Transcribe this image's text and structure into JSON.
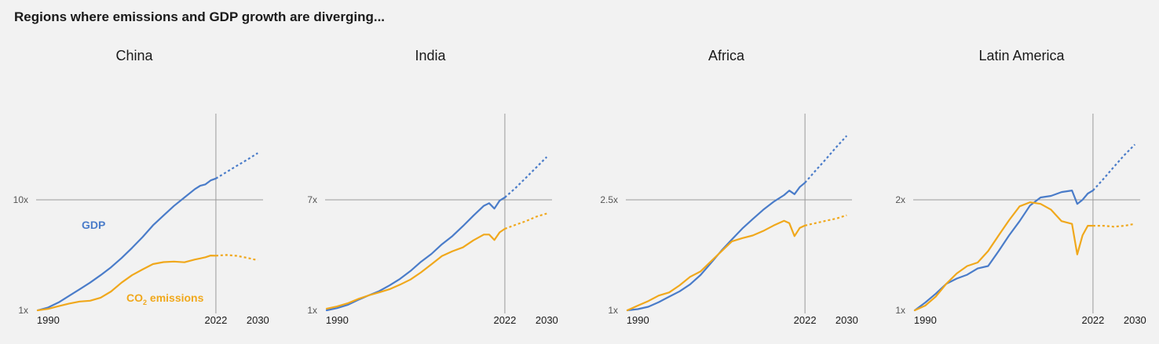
{
  "page": {
    "title": "Regions where emissions and GDP growth are diverging..."
  },
  "colors": {
    "gdp": "#4a7cc9",
    "co2": "#f0a81c",
    "axis": "#9a9a9a",
    "text": "#1a1a1a",
    "tick_text": "#555555",
    "background": "#f2f2f2"
  },
  "chart_data": [
    {
      "type": "line",
      "title": "China",
      "y_scale": "log",
      "ytick_label": "10x",
      "ytick_value": 10,
      "ylim": [
        1,
        30
      ],
      "xlim": [
        1988,
        2031
      ],
      "xtick_labels": [
        "1990",
        "2022",
        "2030"
      ],
      "vline": 2022,
      "annotations": [
        "GDP",
        "CO2 emissions"
      ],
      "series": [
        {
          "name": "GDP",
          "x": [
            1988,
            1990,
            1992,
            1994,
            1996,
            1998,
            2000,
            2002,
            2004,
            2006,
            2008,
            2010,
            2012,
            2014,
            2016,
            2018,
            2019,
            2020,
            2021,
            2022
          ],
          "y": [
            1.0,
            1.06,
            1.18,
            1.35,
            1.55,
            1.78,
            2.08,
            2.45,
            2.97,
            3.67,
            4.6,
            5.87,
            7.2,
            8.8,
            10.5,
            12.5,
            13.4,
            13.8,
            15.0,
            15.6
          ]
        },
        {
          "name": "GDP (projection)",
          "x": [
            2022,
            2024,
            2026,
            2028,
            2030
          ],
          "y": [
            15.6,
            17.8,
            20.3,
            23.1,
            26.5
          ]
        },
        {
          "name": "CO2 emissions",
          "x": [
            1988,
            1990,
            1992,
            1994,
            1996,
            1998,
            2000,
            2002,
            2004,
            2006,
            2008,
            2010,
            2012,
            2014,
            2016,
            2018,
            2019,
            2020,
            2021,
            2022
          ],
          "y": [
            1.0,
            1.03,
            1.09,
            1.15,
            1.2,
            1.22,
            1.3,
            1.48,
            1.78,
            2.08,
            2.34,
            2.62,
            2.73,
            2.76,
            2.72,
            2.88,
            2.95,
            3.02,
            3.13,
            3.12
          ]
        },
        {
          "name": "CO2 emissions (projection)",
          "x": [
            2022,
            2024,
            2026,
            2028,
            2030
          ],
          "y": [
            3.12,
            3.17,
            3.11,
            2.98,
            2.84
          ]
        }
      ]
    },
    {
      "type": "line",
      "title": "India",
      "y_scale": "log",
      "ytick_label": "7x",
      "ytick_value": 7,
      "ylim": [
        1,
        19
      ],
      "xlim": [
        1988,
        2031
      ],
      "xtick_labels": [
        "1990",
        "2022",
        "2030"
      ],
      "vline": 2022,
      "series": [
        {
          "name": "GDP",
          "x": [
            1988,
            1990,
            1992,
            1994,
            1996,
            1998,
            2000,
            2002,
            2004,
            2006,
            2008,
            2010,
            2012,
            2014,
            2016,
            2018,
            2019,
            2020,
            2021,
            2022
          ],
          "y": [
            1.0,
            1.04,
            1.1,
            1.2,
            1.3,
            1.4,
            1.55,
            1.74,
            2.0,
            2.35,
            2.7,
            3.2,
            3.7,
            4.4,
            5.3,
            6.3,
            6.6,
            6.0,
            6.9,
            7.3
          ]
        },
        {
          "name": "GDP (projection)",
          "x": [
            2022,
            2024,
            2026,
            2028,
            2030
          ],
          "y": [
            7.3,
            8.6,
            10.3,
            12.4,
            14.9
          ]
        },
        {
          "name": "CO2 emissions",
          "x": [
            1988,
            1990,
            1992,
            1994,
            1996,
            1998,
            2000,
            2002,
            2004,
            2006,
            2008,
            2010,
            2012,
            2014,
            2016,
            2018,
            2019,
            2020,
            2021,
            2022
          ],
          "y": [
            1.03,
            1.07,
            1.13,
            1.22,
            1.3,
            1.37,
            1.45,
            1.57,
            1.72,
            1.95,
            2.25,
            2.6,
            2.83,
            3.03,
            3.43,
            3.8,
            3.8,
            3.45,
            3.95,
            4.2
          ]
        },
        {
          "name": "CO2 emissions (projection)",
          "x": [
            2022,
            2024,
            2026,
            2028,
            2030
          ],
          "y": [
            4.2,
            4.5,
            4.8,
            5.2,
            5.5
          ]
        }
      ]
    },
    {
      "type": "line",
      "title": "Africa",
      "y_scale": "log",
      "ytick_label": "2.5x",
      "ytick_value": 2.5,
      "ylim": [
        1,
        4.2
      ],
      "xlim": [
        1988,
        2031
      ],
      "xtick_labels": [
        "1990",
        "2022",
        "2030"
      ],
      "vline": 2022,
      "series": [
        {
          "name": "GDP",
          "x": [
            1988,
            1990,
            1992,
            1994,
            1996,
            1998,
            2000,
            2002,
            2004,
            2006,
            2008,
            2010,
            2012,
            2014,
            2016,
            2018,
            2019,
            2020,
            2021,
            2022
          ],
          "y": [
            1.0,
            1.01,
            1.03,
            1.07,
            1.12,
            1.17,
            1.24,
            1.34,
            1.48,
            1.64,
            1.8,
            1.97,
            2.13,
            2.3,
            2.46,
            2.6,
            2.7,
            2.62,
            2.78,
            2.88
          ]
        },
        {
          "name": "GDP (projection)",
          "x": [
            2022,
            2024,
            2026,
            2028,
            2030
          ],
          "y": [
            2.88,
            3.18,
            3.5,
            3.87,
            4.25
          ]
        },
        {
          "name": "CO2 emissions",
          "x": [
            1988,
            1990,
            1992,
            1994,
            1996,
            1998,
            2000,
            2002,
            2004,
            2006,
            2008,
            2010,
            2012,
            2014,
            2016,
            2018,
            2019,
            2020,
            2021,
            2022
          ],
          "y": [
            1.0,
            1.04,
            1.08,
            1.13,
            1.16,
            1.23,
            1.32,
            1.38,
            1.5,
            1.63,
            1.77,
            1.82,
            1.86,
            1.93,
            2.02,
            2.1,
            2.06,
            1.85,
            1.98,
            2.02
          ]
        },
        {
          "name": "CO2 emissions (projection)",
          "x": [
            2022,
            2024,
            2026,
            2028,
            2030
          ],
          "y": [
            2.02,
            2.06,
            2.1,
            2.14,
            2.2
          ]
        }
      ]
    },
    {
      "type": "line",
      "title": "Latin America",
      "y_scale": "log",
      "ytick_label": "2x",
      "ytick_value": 2,
      "ylim": [
        1,
        3.0
      ],
      "xlim": [
        1988,
        2031
      ],
      "xtick_labels": [
        "1990",
        "2022",
        "2030"
      ],
      "vline": 2022,
      "series": [
        {
          "name": "GDP",
          "x": [
            1988,
            1990,
            1992,
            1994,
            1996,
            1998,
            2000,
            2002,
            2004,
            2006,
            2008,
            2010,
            2012,
            2014,
            2016,
            2018,
            2019,
            2020,
            2021,
            2022
          ],
          "y": [
            1.0,
            1.05,
            1.11,
            1.18,
            1.22,
            1.25,
            1.3,
            1.32,
            1.45,
            1.6,
            1.75,
            1.93,
            2.03,
            2.05,
            2.1,
            2.12,
            1.95,
            2.0,
            2.08,
            2.12
          ]
        },
        {
          "name": "GDP (projection)",
          "x": [
            2022,
            2024,
            2026,
            2028,
            2030
          ],
          "y": [
            2.12,
            2.28,
            2.46,
            2.65,
            2.83
          ]
        },
        {
          "name": "CO2 emissions",
          "x": [
            1988,
            1990,
            1992,
            1994,
            1996,
            1998,
            2000,
            2002,
            2004,
            2006,
            2008,
            2010,
            2012,
            2014,
            2016,
            2018,
            2019,
            2020,
            2021,
            2022
          ],
          "y": [
            1.0,
            1.03,
            1.09,
            1.18,
            1.26,
            1.32,
            1.35,
            1.45,
            1.6,
            1.76,
            1.92,
            1.97,
            1.95,
            1.88,
            1.75,
            1.72,
            1.42,
            1.6,
            1.7,
            1.7
          ]
        },
        {
          "name": "CO2 emissions (projection)",
          "x": [
            2022,
            2024,
            2026,
            2028,
            2030
          ],
          "y": [
            1.7,
            1.7,
            1.69,
            1.7,
            1.72
          ]
        }
      ]
    }
  ]
}
